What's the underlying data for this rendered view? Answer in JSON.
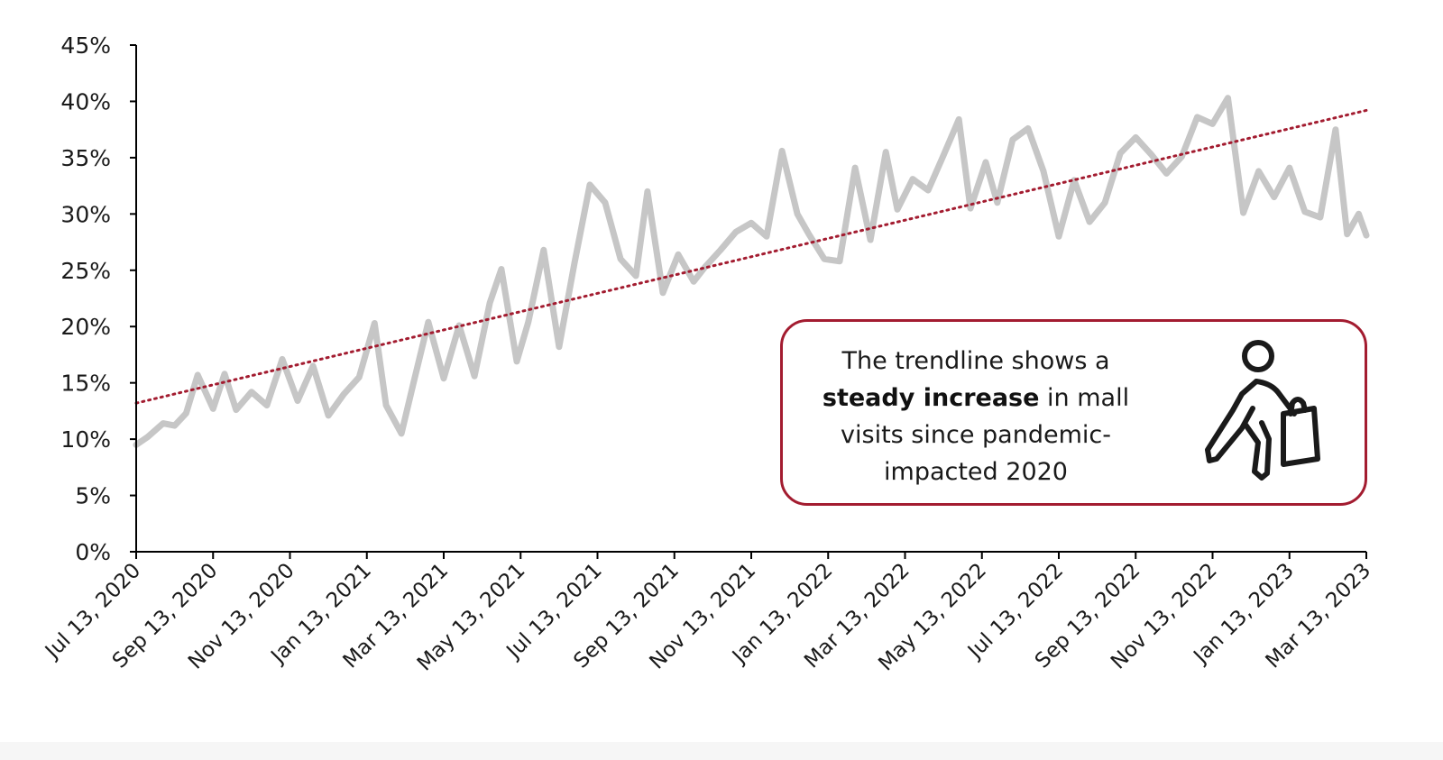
{
  "chart_data": {
    "type": "line",
    "title": "",
    "xlabel": "",
    "ylabel": "",
    "ylim": [
      0,
      45
    ],
    "y_ticks": [
      0,
      5,
      10,
      15,
      20,
      25,
      30,
      35,
      40,
      45
    ],
    "y_tick_labels": [
      "0%",
      "5%",
      "10%",
      "15%",
      "20%",
      "25%",
      "30%",
      "35%",
      "40%",
      "45%"
    ],
    "x_tick_labels": [
      "Jul 13, 2020",
      "Sep 13, 2020",
      "Nov 13, 2020",
      "Jan 13, 2021",
      "Mar 13, 2021",
      "May 13, 2021",
      "Jul 13, 2021",
      "Sep 13, 2021",
      "Nov 13, 2021",
      "Jan 13, 2022",
      "Mar 13, 2022",
      "May 13, 2022",
      "Jul 13, 2022",
      "Sep 13, 2022",
      "Nov 13, 2022",
      "Jan 13, 2023",
      "Mar 13, 2023"
    ],
    "x_tick_months": [
      0,
      2,
      4,
      6,
      8,
      10,
      12,
      14,
      16,
      18,
      20,
      22,
      24,
      26,
      28,
      30,
      32
    ],
    "x_range_months": [
      0,
      32
    ],
    "grid": false,
    "series": [
      {
        "name": "Mall visits",
        "color": "#c6c6c6",
        "x_months": [
          0,
          0.3,
          0.7,
          1.0,
          1.3,
          1.6,
          2.0,
          2.3,
          2.6,
          3.0,
          3.4,
          3.8,
          4.2,
          4.6,
          5.0,
          5.4,
          5.8,
          6.2,
          6.5,
          6.9,
          7.2,
          7.6,
          8.0,
          8.4,
          8.8,
          9.2,
          9.5,
          9.9,
          10.2,
          10.6,
          11.0,
          11.4,
          11.8,
          12.2,
          12.6,
          13.0,
          13.3,
          13.7,
          14.1,
          14.5,
          14.8,
          15.2,
          15.6,
          16.0,
          16.4,
          16.8,
          17.2,
          17.5,
          17.9,
          18.3,
          18.7,
          19.1,
          19.5,
          19.8,
          20.2,
          20.6,
          21.0,
          21.4,
          21.7,
          22.1,
          22.4,
          22.8,
          23.2,
          23.6,
          24.0,
          24.4,
          24.8,
          25.2,
          25.6,
          26.0,
          26.4,
          26.8,
          27.2,
          27.6,
          28.0,
          28.4,
          28.8,
          29.2,
          29.6,
          30.0,
          30.4,
          30.8,
          31.2,
          31.5,
          31.8,
          32.0
        ],
        "values": [
          9.5,
          10.2,
          11.4,
          11.2,
          12.3,
          15.7,
          12.7,
          15.8,
          12.6,
          14.2,
          13.0,
          17.1,
          13.4,
          16.5,
          12.1,
          14.0,
          15.5,
          20.3,
          13.0,
          10.5,
          14.8,
          20.4,
          15.4,
          20.1,
          15.6,
          22.1,
          25.1,
          16.9,
          20.4,
          26.8,
          18.2,
          25.6,
          32.6,
          31.0,
          26.0,
          24.5,
          32.0,
          23.0,
          26.4,
          24.0,
          25.3,
          26.8,
          28.4,
          29.2,
          28.0,
          35.6,
          30.0,
          28.2,
          26.0,
          25.8,
          34.1,
          27.7,
          35.5,
          30.4,
          33.1,
          32.1,
          35.2,
          38.4,
          30.5,
          34.6,
          31.0,
          36.6,
          37.6,
          33.8,
          28.0,
          33.0,
          29.3,
          31.0,
          35.4,
          36.8,
          35.3,
          33.6,
          35.1,
          38.6,
          38.0,
          40.3,
          30.1,
          33.8,
          31.5,
          34.1,
          30.2,
          29.7,
          37.5,
          28.2,
          30.0,
          28.1
        ]
      },
      {
        "name": "Trendline",
        "color": "#a31c30",
        "x_months": [
          0,
          32
        ],
        "values": [
          13.2,
          39.2
        ]
      }
    ],
    "annotations": [
      {
        "text_before": "The trendline shows a",
        "text_bold": "steady increase",
        "text_after_bold": "in mall visits since pandemic-impacted 2020",
        "line_1": "The trendline shows a",
        "line_2_bold": "steady increase",
        "line_2_rest": " in mall",
        "line_3": "visits since pandemic-",
        "line_4": "impacted 2020",
        "icon": "shopper-with-bag-icon",
        "border_color": "#a31c30"
      }
    ]
  }
}
